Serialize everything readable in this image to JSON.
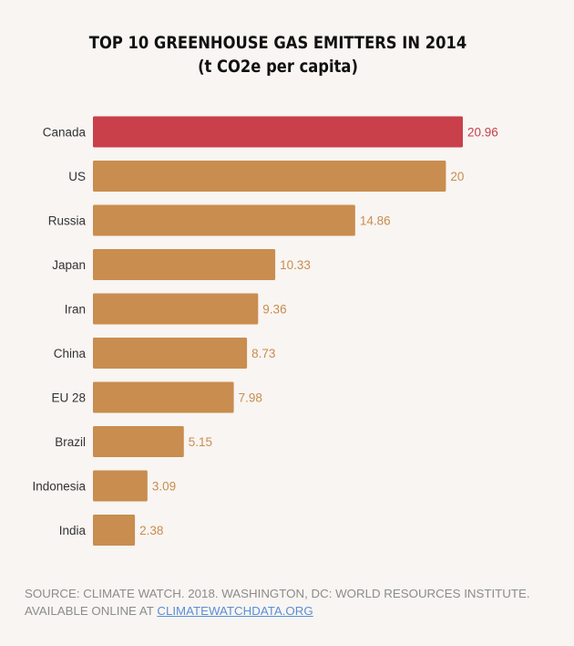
{
  "chart_data": {
    "type": "bar",
    "orientation": "horizontal",
    "title": "TOP 10 GREENHOUSE GAS EMITTERS IN 2014",
    "subtitle": "(t CO2e per capita)",
    "categories": [
      "Canada",
      "US",
      "Russia",
      "Japan",
      "Iran",
      "China",
      "EU 28",
      "Brazil",
      "Indonesia",
      "India"
    ],
    "values": [
      20.96,
      20,
      14.86,
      10.33,
      9.36,
      8.73,
      7.98,
      5.15,
      3.09,
      2.38
    ],
    "value_labels": [
      "20.96",
      "20",
      "14.86",
      "10.33",
      "9.36",
      "8.73",
      "7.98",
      "5.15",
      "3.09",
      "2.38"
    ],
    "highlight_category": "Canada",
    "colors": {
      "highlight": "#c9404b",
      "default": "#c98d4f",
      "highlight_label": "#c9404b",
      "default_label": "#c98d4f",
      "category_label": "#333333"
    },
    "xlim": [
      0,
      20.96
    ],
    "xlabel": "",
    "ylabel": ""
  },
  "source": {
    "line1": "SOURCE: CLIMATE WATCH. 2018. WASHINGTON, DC: WORLD RESOURCES INSTITUTE.",
    "line2_prefix": "AVAILABLE ONLINE AT ",
    "link_text": "CLIMATEWATCHDATA.ORG"
  }
}
